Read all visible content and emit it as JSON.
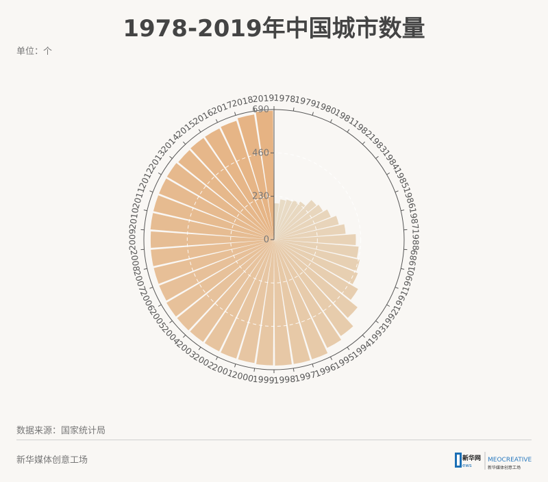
{
  "header": {
    "title": "1978-2019年中国城市数量",
    "unit": "单位：个"
  },
  "footer": {
    "source": "数据来源：国家统计局",
    "brand": "新华媒体创意工场",
    "logo_xinhua": "新华网",
    "logo_meo": "MEOCREATIVE",
    "logo_meo_sub": "新华媒体创意工场"
  },
  "colors": {
    "bar_start": "#e8dcc7",
    "bar_end": "#e6b383",
    "axis": "#555555",
    "grid": "#ffffff"
  },
  "chart_data": {
    "type": "bar",
    "layout": "polar-radial",
    "title": "1978-2019年中国城市数量",
    "ylabel": "单位：个",
    "ylim": [
      0,
      690
    ],
    "yticks": [
      0,
      230,
      460,
      690
    ],
    "categories": [
      "1978",
      "1979",
      "1980",
      "1981",
      "1982",
      "1983",
      "1984",
      "1985",
      "1986",
      "1987",
      "1988",
      "1989",
      "1990",
      "1991",
      "1992",
      "1993",
      "1994",
      "1995",
      "1996",
      "1997",
      "1998",
      "1999",
      "2000",
      "2001",
      "2002",
      "2003",
      "2004",
      "2005",
      "2006",
      "2007",
      "2008",
      "2009",
      "2010",
      "2011",
      "2012",
      "2013",
      "2014",
      "2015",
      "2016",
      "2017",
      "2018",
      "2019"
    ],
    "values": [
      193,
      216,
      223,
      233,
      245,
      289,
      300,
      324,
      353,
      381,
      434,
      450,
      467,
      479,
      517,
      570,
      622,
      640,
      666,
      668,
      668,
      667,
      663,
      662,
      660,
      660,
      661,
      661,
      656,
      655,
      655,
      654,
      657,
      657,
      657,
      658,
      653,
      656,
      657,
      661,
      672,
      684
    ],
    "grid": true,
    "legend": "none"
  }
}
